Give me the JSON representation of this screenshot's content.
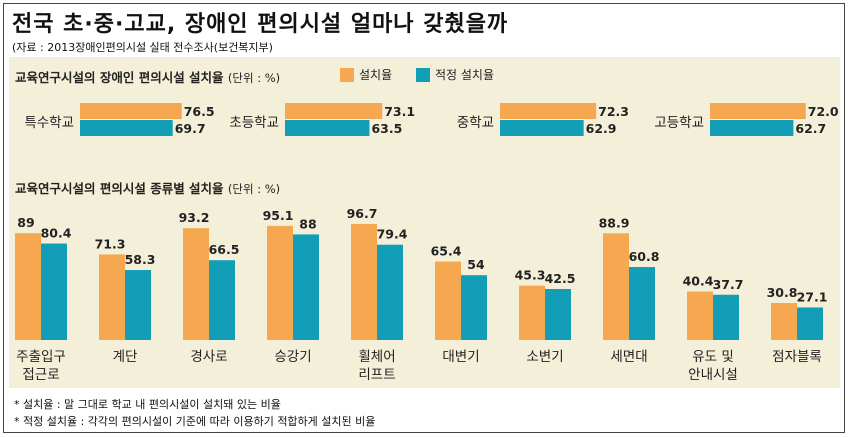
{
  "title": "전국 초·중·고교, 장애인 편의시설 얼마나 갖췄을까",
  "source": "(자료 : 2013장애인편의시설 실태 전수조사(보건복지부)",
  "legend": {
    "install": "설치율",
    "proper": "적정 설치율"
  },
  "colors": {
    "install": "#f5a850",
    "proper": "#119eb6"
  },
  "notes": [
    "* 설치율 : 말 그대로 학교 내 편의시설이 설치돼 있는 비율",
    "* 적정 설치율 : 각각의 편의시설이 기준에 따라 이용하기 적합하게 설치된 비율"
  ],
  "chart_data": [
    {
      "type": "bar",
      "orientation": "horizontal",
      "title": "교육연구시설의 장애인 편의시설 설치율",
      "unit": "(단위 : %)",
      "categories": [
        "특수학교",
        "초등학교",
        "중학교",
        "고등학교"
      ],
      "series": [
        {
          "name": "설치율",
          "values": [
            76.5,
            73.1,
            72.3,
            72.0
          ],
          "labels": [
            "76.5",
            "73.1",
            "72.3",
            "72.0"
          ]
        },
        {
          "name": "적정 설치율",
          "values": [
            69.7,
            63.5,
            62.9,
            62.7
          ],
          "labels": [
            "69.7",
            "63.5",
            "62.9",
            "62.7"
          ]
        }
      ],
      "xlim": [
        0,
        100
      ]
    },
    {
      "type": "bar",
      "orientation": "vertical",
      "title": "교육연구시설의 편의시설 종류별 설치율",
      "unit": "(단위 : %)",
      "categories": [
        [
          "주출입구",
          "접근로"
        ],
        [
          "계단"
        ],
        [
          "경사로"
        ],
        [
          "승강기"
        ],
        [
          "휠체어",
          "리프트"
        ],
        [
          "대변기"
        ],
        [
          "소변기"
        ],
        [
          "세면대"
        ],
        [
          "유도 및",
          "안내시설"
        ],
        [
          "점자블록"
        ]
      ],
      "series": [
        {
          "name": "설치율",
          "values": [
            89,
            71.3,
            93.2,
            95.1,
            96.7,
            65.4,
            45.3,
            88.9,
            40.4,
            30.8
          ],
          "labels": [
            "89",
            "71.3",
            "93.2",
            "95.1",
            "96.7",
            "65.4",
            "45.3",
            "88.9",
            "40.4",
            "30.8"
          ]
        },
        {
          "name": "적정 설치율",
          "values": [
            80.4,
            58.3,
            66.5,
            88,
            79.4,
            54,
            42.5,
            60.8,
            37.7,
            27.1
          ],
          "labels": [
            "80.4",
            "58.3",
            "66.5",
            "88",
            "79.4",
            "54",
            "42.5",
            "60.8",
            "37.7",
            "27.1"
          ]
        }
      ],
      "ylim": [
        0,
        100
      ]
    }
  ]
}
